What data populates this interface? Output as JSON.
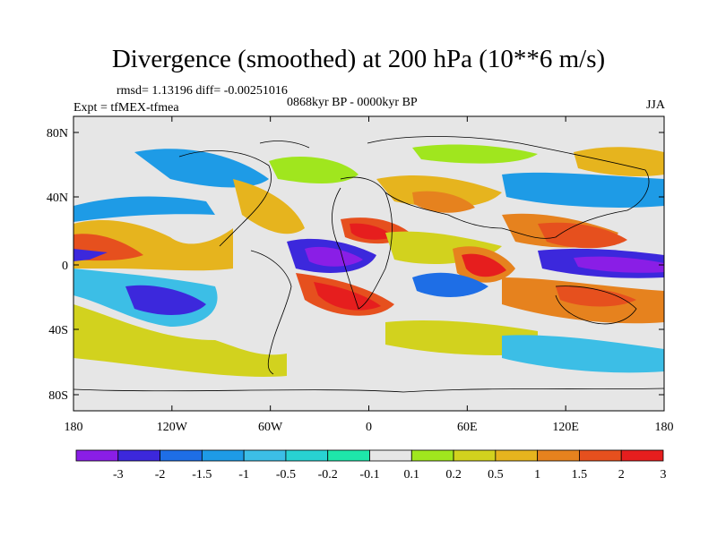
{
  "title": "Divergence (smoothed) at 200 hPa (10**6 m/s)",
  "stats": "rmsd= 1.13196 diff= -0.00251016",
  "period": "0868kyr BP - 0000kyr BP",
  "experiment": "Expt = tfMEX-tfmea",
  "season": "JJA",
  "axes": {
    "x_ticks": [
      "180",
      "120W",
      "60W",
      "0",
      "60E",
      "120E",
      "180"
    ],
    "y_ticks": [
      "80N",
      "40N",
      "0",
      "40S",
      "80S"
    ]
  },
  "colorbar": {
    "labels": [
      "-3",
      "-2",
      "-1.5",
      "-1",
      "-0.5",
      "-0.2",
      "-0.1",
      "0.1",
      "0.2",
      "0.5",
      "1",
      "1.5",
      "2",
      "3"
    ],
    "colors": [
      "#8a1ee6",
      "#3c28dc",
      "#1e6ee6",
      "#1e9be6",
      "#3cbee6",
      "#28d2d2",
      "#1ee6aa",
      "#e6e6e6",
      "#a0e61e",
      "#d2d21e",
      "#e6b41e",
      "#e6821e",
      "#e6501e",
      "#e61e1e"
    ]
  }
}
